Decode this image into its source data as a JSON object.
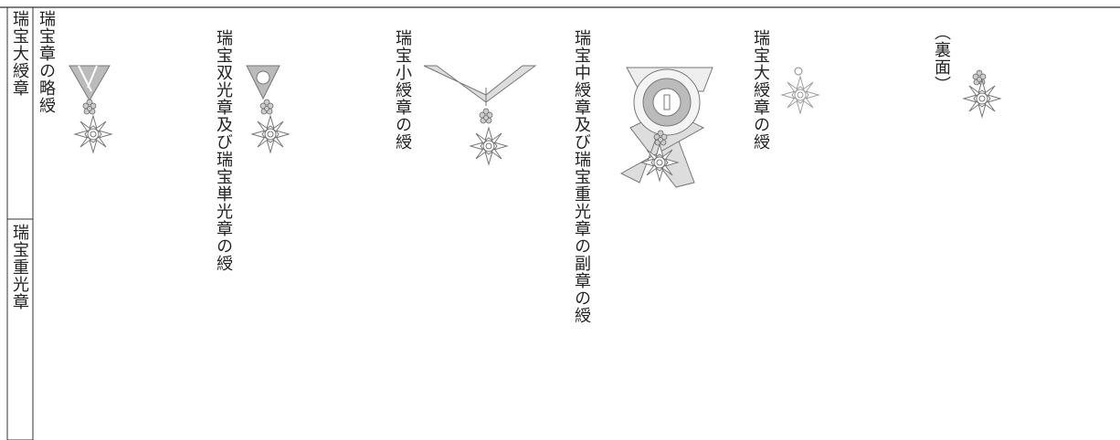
{
  "side_labels": [
    "瑞宝大綬章",
    "瑞宝重光章"
  ],
  "items": [
    {
      "label": "瑞宝章の略綬"
    },
    {
      "label": "瑞宝双光章及び瑞宝単光章の綬"
    },
    {
      "label": "瑞宝小綬章の綬"
    },
    {
      "label": "瑞宝中綬章及び瑞宝重光章の副章の綬"
    },
    {
      "label": "瑞宝大綬章の綬"
    },
    {
      "label": "（裏面）"
    }
  ]
}
